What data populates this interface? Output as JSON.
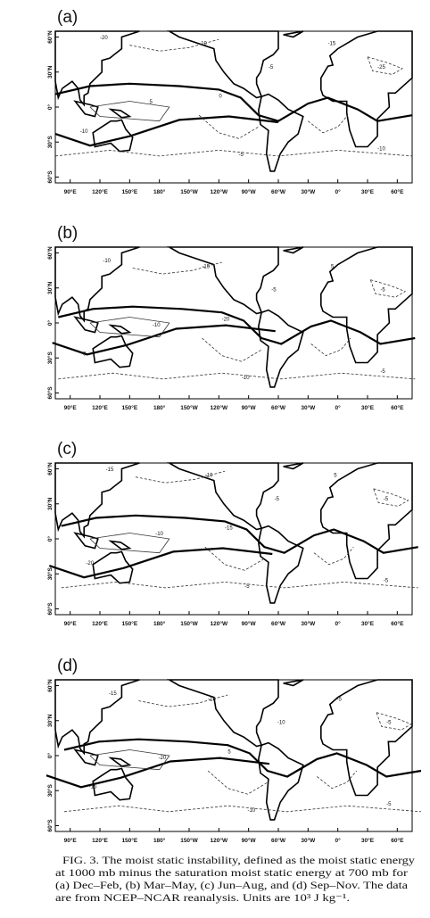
{
  "panels": [
    {
      "label": "(a)",
      "contour_labels": [
        "-20",
        "-10",
        "-15",
        "-5",
        "5",
        "0",
        "-10",
        "-25",
        "-5",
        "-10"
      ]
    },
    {
      "label": "(b)",
      "contour_labels": [
        "-10",
        "-15",
        "5",
        "-5",
        "-10",
        "-20",
        "0",
        "-5",
        "-10",
        "-5"
      ]
    },
    {
      "label": "(c)",
      "contour_labels": [
        "-15",
        "-10",
        "5",
        "-5",
        "-10",
        "-15",
        "-20",
        "-5",
        "-5",
        "-5"
      ]
    },
    {
      "label": "(d)",
      "contour_labels": [
        "-15",
        "-10",
        "-5",
        "-10",
        "-20",
        "5",
        "-15",
        "-5",
        "-10",
        "-5"
      ]
    }
  ],
  "lat_labels": [
    "60°N",
    "30°N",
    "0°",
    "30°S",
    "60°S"
  ],
  "lon_labels": [
    "90°E",
    "120°E",
    "150°E",
    "180°",
    "150°W",
    "120°W",
    "90°W",
    "60°W",
    "30°W",
    "0°",
    "30°E",
    "60°E"
  ],
  "caption": [
    "FIG. 3. The moist static instability, defined as the moist static energy",
    "at 1000 mb minus the saturation moist static energy at 700 mb for",
    "(a) Dec–Feb, (b) Mar–May, (c) Jun–Aug, and (d) Sep–Nov. The data",
    "are from NCEP–NCAR reanalysis. Units are 10³ J kg⁻¹."
  ]
}
